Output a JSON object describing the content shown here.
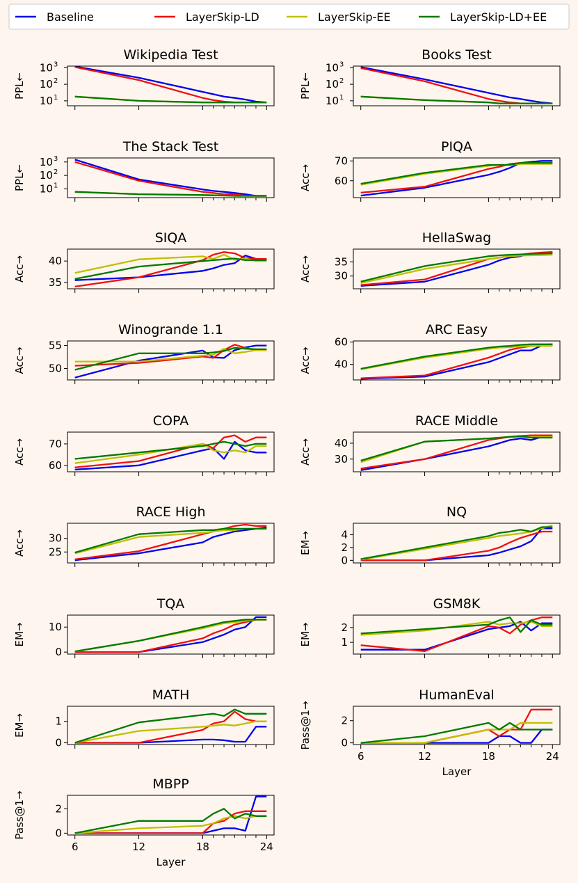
{
  "chart_data": {
    "type": "line",
    "x_label": "Layer",
    "x_ticks": [
      6,
      12,
      18,
      24
    ],
    "layers": [
      6,
      12,
      18,
      19,
      20,
      21,
      22,
      23,
      24
    ],
    "series_names": [
      "Baseline",
      "LayerSkip-LD",
      "LayerSkip-EE",
      "LayerSkip-LD+EE"
    ],
    "series_colors": [
      "#0000ee",
      "#ee1111",
      "#bfbf00",
      "#007a00"
    ],
    "panels": [
      {
        "title": "Wikipedia Test",
        "ylabel": "PPL←",
        "scale": "log",
        "ylim": [
          0.7,
          3.1
        ],
        "yticks": [
          1,
          2,
          3
        ],
        "tick_labels": [
          "10",
          "10",
          "10"
        ],
        "tick_sups": [
          "1",
          "2",
          "3"
        ],
        "show_x_labels": false,
        "values": [
          [
            1200,
            250,
            35,
            25,
            18,
            15,
            12,
            9,
            8
          ],
          [
            1100,
            180,
            15,
            11,
            9,
            8,
            8,
            8,
            8
          ],
          [
            18,
            10,
            8,
            8,
            8,
            8,
            8,
            8,
            8
          ],
          [
            18,
            10,
            8,
            8,
            8,
            8,
            8,
            8,
            8
          ]
        ]
      },
      {
        "title": "Books Test",
        "ylabel": "PPL←",
        "scale": "log",
        "ylim": [
          0.7,
          3.1
        ],
        "yticks": [
          1,
          2,
          3
        ],
        "tick_labels": [
          "10",
          "10",
          "10"
        ],
        "tick_sups": [
          "1",
          "2",
          "3"
        ],
        "show_x_labels": false,
        "values": [
          [
            1100,
            200,
            30,
            22,
            16,
            13,
            10,
            8,
            7
          ],
          [
            950,
            150,
            13,
            10,
            8,
            7,
            7,
            7,
            7
          ],
          [
            18,
            11,
            8,
            7,
            7,
            7,
            7,
            7,
            7
          ],
          [
            18,
            11,
            8,
            7,
            7,
            7,
            7,
            7,
            7
          ]
        ]
      },
      {
        "title": "The Stack Test",
        "ylabel": "PPL←",
        "scale": "log",
        "ylim": [
          0.35,
          3.3
        ],
        "yticks": [
          1,
          2,
          3
        ],
        "tick_labels": [
          "10",
          "10",
          "10"
        ],
        "tick_sups": [
          "1",
          "2",
          "3"
        ],
        "show_x_labels": false,
        "values": [
          [
            1500,
            50,
            9,
            7,
            6,
            5,
            4,
            3,
            3
          ],
          [
            1000,
            40,
            6,
            5,
            4,
            4,
            3,
            3,
            3
          ],
          [
            6,
            4,
            3.5,
            3.3,
            3.2,
            3,
            3,
            3,
            3
          ],
          [
            6,
            4,
            3.5,
            3.3,
            3.2,
            3,
            3,
            3,
            3
          ]
        ]
      },
      {
        "title": "PIQA",
        "ylabel": "Acc→",
        "scale": "linear",
        "ylim": [
          51.5,
          71.5
        ],
        "yticks": [
          60,
          70
        ],
        "show_x_labels": false,
        "values": [
          [
            52.5,
            56.5,
            63,
            64.5,
            66.5,
            69,
            69.5,
            70,
            70
          ],
          [
            54,
            57,
            66,
            67,
            68.5,
            69,
            69,
            69,
            69
          ],
          [
            58,
            63.5,
            67.5,
            68,
            68,
            68.5,
            68.5,
            68.5,
            68.5
          ],
          [
            58.5,
            64,
            68,
            68,
            68,
            69,
            69,
            69,
            69
          ]
        ]
      },
      {
        "title": "SIQA",
        "ylabel": "Acc→",
        "scale": "linear",
        "ylim": [
          33.5,
          42.8
        ],
        "yticks": [
          35,
          40
        ],
        "show_x_labels": false,
        "values": [
          [
            35.5,
            36.2,
            37.7,
            38.3,
            39.1,
            39.5,
            41.3,
            40.5,
            40.5
          ],
          [
            34,
            36.2,
            40.2,
            41.5,
            42.1,
            41.8,
            40.7,
            40.5,
            40.5
          ],
          [
            37.2,
            40.4,
            41.1,
            40.5,
            41.5,
            40.3,
            40.6,
            40,
            40
          ],
          [
            35.8,
            38.7,
            40,
            40.2,
            40.4,
            40.6,
            40.2,
            40.2,
            40.2
          ]
        ]
      },
      {
        "title": "HellaSwag",
        "ylabel": "Acc→",
        "scale": "linear",
        "ylim": [
          25.5,
          39.5
        ],
        "yticks": [
          30,
          35
        ],
        "show_x_labels": false,
        "values": [
          [
            26.5,
            28,
            34,
            35.5,
            36.5,
            37,
            38,
            38,
            38.3
          ],
          [
            26.8,
            28.8,
            36,
            36.5,
            37,
            37.5,
            38,
            38.3,
            38.5
          ],
          [
            27.5,
            32.5,
            36,
            36.5,
            37,
            37.2,
            37.3,
            37.4,
            37.5
          ],
          [
            28,
            33.5,
            37,
            37.3,
            37.5,
            37.6,
            37.8,
            37.9,
            38
          ]
        ]
      },
      {
        "title": "Winogrande 1.1",
        "ylabel": "Acc→",
        "scale": "linear",
        "ylim": [
          47.5,
          56
        ],
        "yticks": [
          50,
          55
        ],
        "show_x_labels": false,
        "values": [
          [
            48,
            51.7,
            53.9,
            52.4,
            52.3,
            54,
            54.6,
            55,
            55
          ],
          [
            50.6,
            51.2,
            52.6,
            52.3,
            54,
            55.2,
            54.5,
            54,
            54
          ],
          [
            51.5,
            51.5,
            52.8,
            53,
            54.3,
            53.3,
            53.6,
            54,
            54
          ],
          [
            49.7,
            53.3,
            53.3,
            53.5,
            53.8,
            54.5,
            54.3,
            54.2,
            54.2
          ]
        ]
      },
      {
        "title": "ARC Easy",
        "ylabel": "Acc→",
        "scale": "linear",
        "ylim": [
          26,
          61
        ],
        "yticks": [
          40,
          60
        ],
        "show_x_labels": false,
        "values": [
          [
            27,
            29,
            42,
            45.5,
            49,
            52.5,
            52.5,
            57,
            57.5
          ],
          [
            27.5,
            30,
            46,
            49.5,
            53,
            55,
            56.5,
            57.5,
            58
          ],
          [
            35.5,
            46,
            54,
            55,
            55.5,
            56,
            56.5,
            56.5,
            56.5
          ],
          [
            36,
            47,
            55,
            56,
            56.5,
            57.5,
            58,
            58,
            58
          ]
        ]
      },
      {
        "title": "COPA",
        "ylabel": "Acc→",
        "scale": "linear",
        "ylim": [
          57,
          75.5
        ],
        "yticks": [
          60,
          70
        ],
        "show_x_labels": false,
        "values": [
          [
            58,
            60,
            67,
            68,
            63,
            71,
            67,
            66,
            66
          ],
          [
            59,
            62,
            70,
            68,
            73,
            74,
            71,
            73,
            73
          ],
          [
            61,
            65,
            70,
            67,
            66,
            67,
            66,
            69,
            69
          ],
          [
            63,
            66,
            69,
            70,
            71,
            70,
            69,
            70,
            70
          ]
        ]
      },
      {
        "title": "RACE Middle",
        "ylabel": "Acc→",
        "scale": "linear",
        "ylim": [
          22,
          47
        ],
        "yticks": [
          30,
          40
        ],
        "show_x_labels": false,
        "values": [
          [
            23,
            30,
            38,
            40,
            42,
            43,
            42,
            44,
            44
          ],
          [
            24,
            30,
            42,
            43,
            44,
            44.5,
            45,
            45,
            45
          ],
          [
            28,
            41,
            43,
            43.5,
            44,
            44,
            44,
            44,
            44
          ],
          [
            29,
            41,
            43,
            43.5,
            44,
            44.5,
            43.5,
            43.5,
            43.5
          ]
        ]
      },
      {
        "title": "RACE High",
        "ylabel": "Acc→",
        "scale": "linear",
        "ylim": [
          21,
          35.5
        ],
        "yticks": [
          25,
          30
        ],
        "show_x_labels": false,
        "values": [
          [
            22,
            24.5,
            28.5,
            30.5,
            31.5,
            32.5,
            33,
            33.5,
            34
          ],
          [
            22.3,
            25.3,
            31.5,
            32.5,
            33.5,
            34.5,
            35,
            34.5,
            34.5
          ],
          [
            24.5,
            30.5,
            32,
            32.5,
            33,
            33,
            33.5,
            33.5,
            33.5
          ],
          [
            24.8,
            31.5,
            33,
            33,
            33.5,
            33.5,
            33.5,
            33.5,
            33.5
          ]
        ]
      },
      {
        "title": "NQ",
        "ylabel": "EM→",
        "scale": "linear",
        "ylim": [
          -0.4,
          5.8
        ],
        "yticks": [
          0,
          2,
          4
        ],
        "show_x_labels": false,
        "values": [
          [
            0,
            0,
            0.8,
            1.2,
            1.7,
            2.2,
            3,
            5,
            5
          ],
          [
            0,
            0,
            1.5,
            2,
            2.8,
            3.5,
            4,
            4.5,
            4.5
          ],
          [
            0.1,
            1.8,
            3.5,
            3.8,
            4,
            4.2,
            4.5,
            5,
            5.5
          ],
          [
            0.2,
            2,
            3.8,
            4.3,
            4.5,
            4.8,
            4.5,
            5.2,
            5.2
          ]
        ]
      },
      {
        "title": "TQA",
        "ylabel": "EM→",
        "scale": "linear",
        "ylim": [
          -0.8,
          14.8
        ],
        "yticks": [
          0,
          10
        ],
        "show_x_labels": false,
        "values": [
          [
            0,
            0,
            4,
            5.5,
            7,
            9,
            10,
            14,
            14
          ],
          [
            0,
            0,
            5.5,
            7.5,
            9,
            11,
            12,
            13,
            13
          ],
          [
            0.2,
            4.5,
            9.5,
            10.5,
            11.5,
            12,
            12.5,
            13,
            13
          ],
          [
            0.3,
            4.5,
            10,
            11,
            12,
            12.5,
            13,
            13,
            13
          ]
        ]
      },
      {
        "title": "GSM8K",
        "ylabel": "EM→",
        "scale": "linear",
        "ylim": [
          0.2,
          2.85
        ],
        "yticks": [
          1,
          2
        ],
        "show_x_labels": false,
        "values": [
          [
            0.5,
            0.5,
            1.9,
            2,
            2.1,
            2.4,
            1.8,
            2.3,
            2.3
          ],
          [
            0.8,
            0.4,
            2.1,
            2,
            1.6,
            2.2,
            2.5,
            2.7,
            2.7
          ],
          [
            1.5,
            1.8,
            2.4,
            2.2,
            2.3,
            2.3,
            2.4,
            2.1,
            2.1
          ],
          [
            1.6,
            1.9,
            2.2,
            2.5,
            2.7,
            1.7,
            2.5,
            2.2,
            2.2
          ]
        ]
      },
      {
        "title": "MATH",
        "ylabel": "EM→",
        "scale": "linear",
        "ylim": [
          -0.08,
          1.7
        ],
        "yticks": [
          0,
          1
        ],
        "show_x_labels": false,
        "values": [
          [
            0,
            0,
            0.15,
            0.15,
            0.12,
            0.05,
            0.05,
            0.75,
            0.75
          ],
          [
            0,
            0,
            0.6,
            0.9,
            1,
            1.45,
            1.1,
            1,
            1
          ],
          [
            0,
            0.55,
            0.75,
            0.8,
            0.85,
            0.8,
            0.9,
            1,
            1
          ],
          [
            0,
            0.95,
            1.3,
            1.35,
            1.25,
            1.55,
            1.35,
            1.35,
            1.35
          ]
        ]
      },
      {
        "title": "HumanEval",
        "ylabel": "Pass@1→",
        "scale": "linear",
        "ylim": [
          -0.15,
          3.3
        ],
        "yticks": [
          0,
          2
        ],
        "show_x_labels": true,
        "values": [
          [
            0,
            0,
            0,
            0.6,
            0.6,
            0,
            0,
            1.2,
            1.2
          ],
          [
            0,
            0,
            1.2,
            0.6,
            1.2,
            1.2,
            3,
            3,
            3
          ],
          [
            0,
            0,
            1.2,
            1.2,
            1.2,
            1.8,
            1.8,
            1.8,
            1.8
          ],
          [
            0,
            0.6,
            1.8,
            1.2,
            1.8,
            1.2,
            1.2,
            1.2,
            1.2
          ]
        ]
      },
      {
        "title": "MBPP",
        "ylabel": "Pass@1→",
        "scale": "linear",
        "ylim": [
          -0.15,
          3.1
        ],
        "yticks": [
          0,
          2
        ],
        "show_x_labels": true,
        "values": [
          [
            0,
            0,
            0,
            0.2,
            0.4,
            0.4,
            0.2,
            3,
            3
          ],
          [
            0,
            0,
            0,
            0.8,
            1,
            1.6,
            1.8,
            1.8,
            1.8
          ],
          [
            0,
            0.4,
            0.6,
            0.8,
            1.2,
            1.4,
            1.2,
            1.4,
            1.4
          ],
          [
            0,
            1,
            1,
            1.6,
            2,
            1.2,
            1.6,
            1.4,
            1.4
          ]
        ]
      }
    ]
  }
}
